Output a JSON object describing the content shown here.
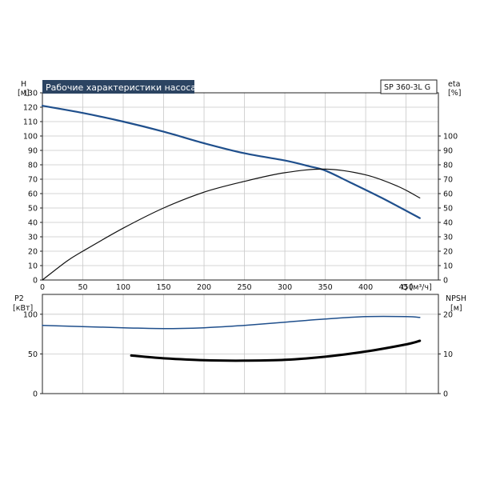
{
  "colors": {
    "head_curve": "#1f4f8c",
    "eta_curve": "#111111",
    "p2_curve": "#1f4f8c",
    "npsh_curve": "#000000",
    "title_bg": "#2c4462"
  },
  "chart_data": [
    {
      "type": "line",
      "title": "Рабочие характеристики насоса",
      "model": "SP 360-3L G",
      "xlabel": "Q [м³/ч]",
      "x_ticks": [
        "0",
        "50",
        "100",
        "150",
        "200",
        "250",
        "300",
        "350",
        "400",
        "450"
      ],
      "xlim": [
        0,
        490
      ],
      "left_axis": {
        "name": "H",
        "unit": "[м]",
        "ylim": [
          0,
          130
        ],
        "ticks": [
          "0",
          "10",
          "20",
          "30",
          "40",
          "50",
          "60",
          "70",
          "80",
          "90",
          "100",
          "110",
          "120",
          "130"
        ]
      },
      "right_axis": {
        "name": "eta",
        "unit": "[%]",
        "ylim": [
          0,
          130
        ],
        "ticks": [
          "0",
          "10",
          "20",
          "30",
          "40",
          "50",
          "60",
          "70",
          "80",
          "90",
          "100"
        ]
      },
      "grid": true,
      "series": [
        {
          "axis": "left",
          "color": "#1f4f8c",
          "width": 2.2,
          "x": [
            0,
            50,
            100,
            150,
            200,
            250,
            300,
            330,
            350,
            380,
            420,
            467
          ],
          "y": [
            121,
            116,
            110,
            103,
            95,
            88,
            83,
            79,
            76,
            68,
            57,
            43
          ]
        },
        {
          "axis": "right",
          "color": "#111111",
          "width": 1.2,
          "x": [
            0,
            30,
            50,
            100,
            150,
            200,
            250,
            300,
            350,
            400,
            440,
            467
          ],
          "y": [
            0,
            13,
            20,
            36,
            50,
            61,
            68.5,
            74.5,
            77,
            73,
            65,
            57
          ]
        }
      ]
    },
    {
      "type": "line",
      "xlim": [
        0,
        490
      ],
      "left_axis": {
        "name": "P2",
        "unit": "[кВт]",
        "ylim": [
          0,
          125
        ],
        "ticks": [
          "0",
          "50",
          "100"
        ]
      },
      "right_axis": {
        "name": "NPSH",
        "unit": "[м]",
        "ylim": [
          0,
          25
        ],
        "ticks": [
          "0",
          "10",
          "20"
        ]
      },
      "grid": true,
      "series": [
        {
          "axis": "left",
          "color": "#1f4f8c",
          "width": 1.5,
          "x": [
            0,
            100,
            150,
            200,
            250,
            300,
            350,
            400,
            450,
            467
          ],
          "y": [
            86,
            83,
            82,
            83,
            86,
            90,
            94,
            97,
            97,
            96
          ]
        },
        {
          "axis": "right",
          "color": "#000000",
          "width": 3,
          "x": [
            110,
            150,
            200,
            250,
            300,
            350,
            400,
            450,
            467
          ],
          "y": [
            9.6,
            8.9,
            8.4,
            8.3,
            8.5,
            9.3,
            10.6,
            12.4,
            13.3
          ]
        }
      ]
    }
  ]
}
